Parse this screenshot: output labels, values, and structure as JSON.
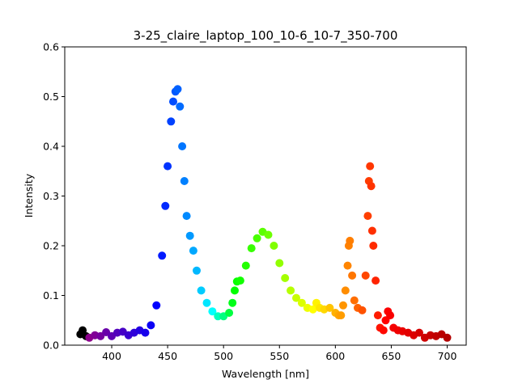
{
  "chart_data": {
    "type": "scatter",
    "title": "3-25_claire_laptop_100_10-6_10-7_350-700",
    "xlabel": "Wavelength [nm]",
    "ylabel": "Intensity",
    "xlim": [
      358,
      717
    ],
    "ylim": [
      0,
      0.6
    ],
    "grid": false,
    "legend": "none",
    "color_mapping": "wavelength-to-rainbow (black below ~380 nm, violet-blue-cyan-green-yellow-orange-red, dark red near 700 nm)",
    "x_ticks": [
      "400",
      "450",
      "500",
      "550",
      "600",
      "650",
      "700"
    ],
    "y_ticks": [
      "0.0",
      "0.1",
      "0.2",
      "0.3",
      "0.4",
      "0.5",
      "0.6"
    ],
    "points": [
      {
        "x": 372,
        "y": 0.022
      },
      {
        "x": 374,
        "y": 0.03
      },
      {
        "x": 377,
        "y": 0.018
      },
      {
        "x": 380,
        "y": 0.015
      },
      {
        "x": 385,
        "y": 0.02
      },
      {
        "x": 390,
        "y": 0.018
      },
      {
        "x": 395,
        "y": 0.026
      },
      {
        "x": 400,
        "y": 0.018
      },
      {
        "x": 405,
        "y": 0.025
      },
      {
        "x": 410,
        "y": 0.027
      },
      {
        "x": 415,
        "y": 0.02
      },
      {
        "x": 420,
        "y": 0.025
      },
      {
        "x": 425,
        "y": 0.03
      },
      {
        "x": 430,
        "y": 0.025
      },
      {
        "x": 435,
        "y": 0.04
      },
      {
        "x": 440,
        "y": 0.08
      },
      {
        "x": 445,
        "y": 0.18
      },
      {
        "x": 448,
        "y": 0.28
      },
      {
        "x": 450,
        "y": 0.36
      },
      {
        "x": 453,
        "y": 0.45
      },
      {
        "x": 455,
        "y": 0.49
      },
      {
        "x": 457,
        "y": 0.51
      },
      {
        "x": 459,
        "y": 0.515
      },
      {
        "x": 461,
        "y": 0.48
      },
      {
        "x": 463,
        "y": 0.4
      },
      {
        "x": 465,
        "y": 0.33
      },
      {
        "x": 467,
        "y": 0.26
      },
      {
        "x": 470,
        "y": 0.22
      },
      {
        "x": 473,
        "y": 0.19
      },
      {
        "x": 476,
        "y": 0.15
      },
      {
        "x": 480,
        "y": 0.11
      },
      {
        "x": 485,
        "y": 0.085
      },
      {
        "x": 490,
        "y": 0.068
      },
      {
        "x": 495,
        "y": 0.058
      },
      {
        "x": 500,
        "y": 0.058
      },
      {
        "x": 505,
        "y": 0.065
      },
      {
        "x": 508,
        "y": 0.085
      },
      {
        "x": 510,
        "y": 0.11
      },
      {
        "x": 512,
        "y": 0.128
      },
      {
        "x": 515,
        "y": 0.13
      },
      {
        "x": 520,
        "y": 0.16
      },
      {
        "x": 525,
        "y": 0.195
      },
      {
        "x": 530,
        "y": 0.215
      },
      {
        "x": 535,
        "y": 0.228
      },
      {
        "x": 540,
        "y": 0.222
      },
      {
        "x": 545,
        "y": 0.2
      },
      {
        "x": 550,
        "y": 0.165
      },
      {
        "x": 555,
        "y": 0.135
      },
      {
        "x": 560,
        "y": 0.11
      },
      {
        "x": 565,
        "y": 0.095
      },
      {
        "x": 570,
        "y": 0.085
      },
      {
        "x": 575,
        "y": 0.075
      },
      {
        "x": 580,
        "y": 0.072
      },
      {
        "x": 583,
        "y": 0.085
      },
      {
        "x": 586,
        "y": 0.075
      },
      {
        "x": 590,
        "y": 0.072
      },
      {
        "x": 595,
        "y": 0.075
      },
      {
        "x": 600,
        "y": 0.065
      },
      {
        "x": 603,
        "y": 0.06
      },
      {
        "x": 605,
        "y": 0.06
      },
      {
        "x": 607,
        "y": 0.08
      },
      {
        "x": 609,
        "y": 0.11
      },
      {
        "x": 611,
        "y": 0.16
      },
      {
        "x": 612,
        "y": 0.2
      },
      {
        "x": 613,
        "y": 0.21
      },
      {
        "x": 615,
        "y": 0.14
      },
      {
        "x": 617,
        "y": 0.09
      },
      {
        "x": 620,
        "y": 0.075
      },
      {
        "x": 624,
        "y": 0.07
      },
      {
        "x": 627,
        "y": 0.14
      },
      {
        "x": 629,
        "y": 0.26
      },
      {
        "x": 630,
        "y": 0.33
      },
      {
        "x": 631,
        "y": 0.36
      },
      {
        "x": 632,
        "y": 0.32
      },
      {
        "x": 633,
        "y": 0.23
      },
      {
        "x": 634,
        "y": 0.2
      },
      {
        "x": 636,
        "y": 0.13
      },
      {
        "x": 638,
        "y": 0.06
      },
      {
        "x": 640,
        "y": 0.035
      },
      {
        "x": 643,
        "y": 0.03
      },
      {
        "x": 645,
        "y": 0.05
      },
      {
        "x": 647,
        "y": 0.068
      },
      {
        "x": 649,
        "y": 0.06
      },
      {
        "x": 652,
        "y": 0.035
      },
      {
        "x": 656,
        "y": 0.03
      },
      {
        "x": 660,
        "y": 0.028
      },
      {
        "x": 665,
        "y": 0.025
      },
      {
        "x": 670,
        "y": 0.02
      },
      {
        "x": 675,
        "y": 0.025
      },
      {
        "x": 680,
        "y": 0.015
      },
      {
        "x": 685,
        "y": 0.02
      },
      {
        "x": 690,
        "y": 0.018
      },
      {
        "x": 695,
        "y": 0.022
      },
      {
        "x": 700,
        "y": 0.015
      }
    ]
  }
}
